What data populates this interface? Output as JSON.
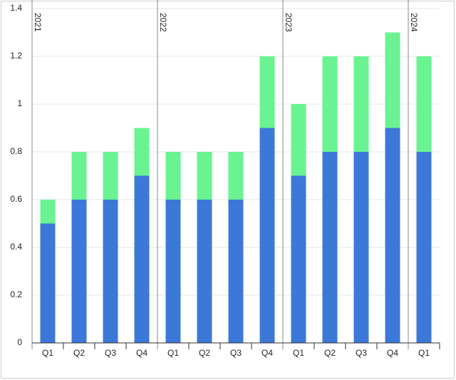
{
  "chart_data": {
    "type": "stacked-bar",
    "groups": [
      {
        "label": "2021",
        "categories": [
          "Q1",
          "Q2",
          "Q3",
          "Q4"
        ]
      },
      {
        "label": "2022",
        "categories": [
          "Q1",
          "Q2",
          "Q3",
          "Q4"
        ]
      },
      {
        "label": "2023",
        "categories": [
          "Q1",
          "Q2",
          "Q3",
          "Q4"
        ]
      },
      {
        "label": "2024",
        "categories": [
          "Q1"
        ]
      }
    ],
    "series": [
      {
        "color": "#3c78d8",
        "values": [
          0.5,
          0.6,
          0.6,
          0.7,
          0.6,
          0.6,
          0.6,
          0.9,
          0.7,
          0.8,
          0.8,
          0.9,
          0.8
        ]
      },
      {
        "color": "#6af391",
        "values": [
          0.1,
          0.2,
          0.2,
          0.2,
          0.2,
          0.2,
          0.2,
          0.3,
          0.3,
          0.4,
          0.4,
          0.4,
          0.4
        ]
      }
    ],
    "ylim": [
      0,
      1.4
    ],
    "yticks": [
      0,
      0.2,
      0.4,
      0.6,
      0.8,
      1,
      1.2,
      1.4
    ],
    "grid": true
  }
}
